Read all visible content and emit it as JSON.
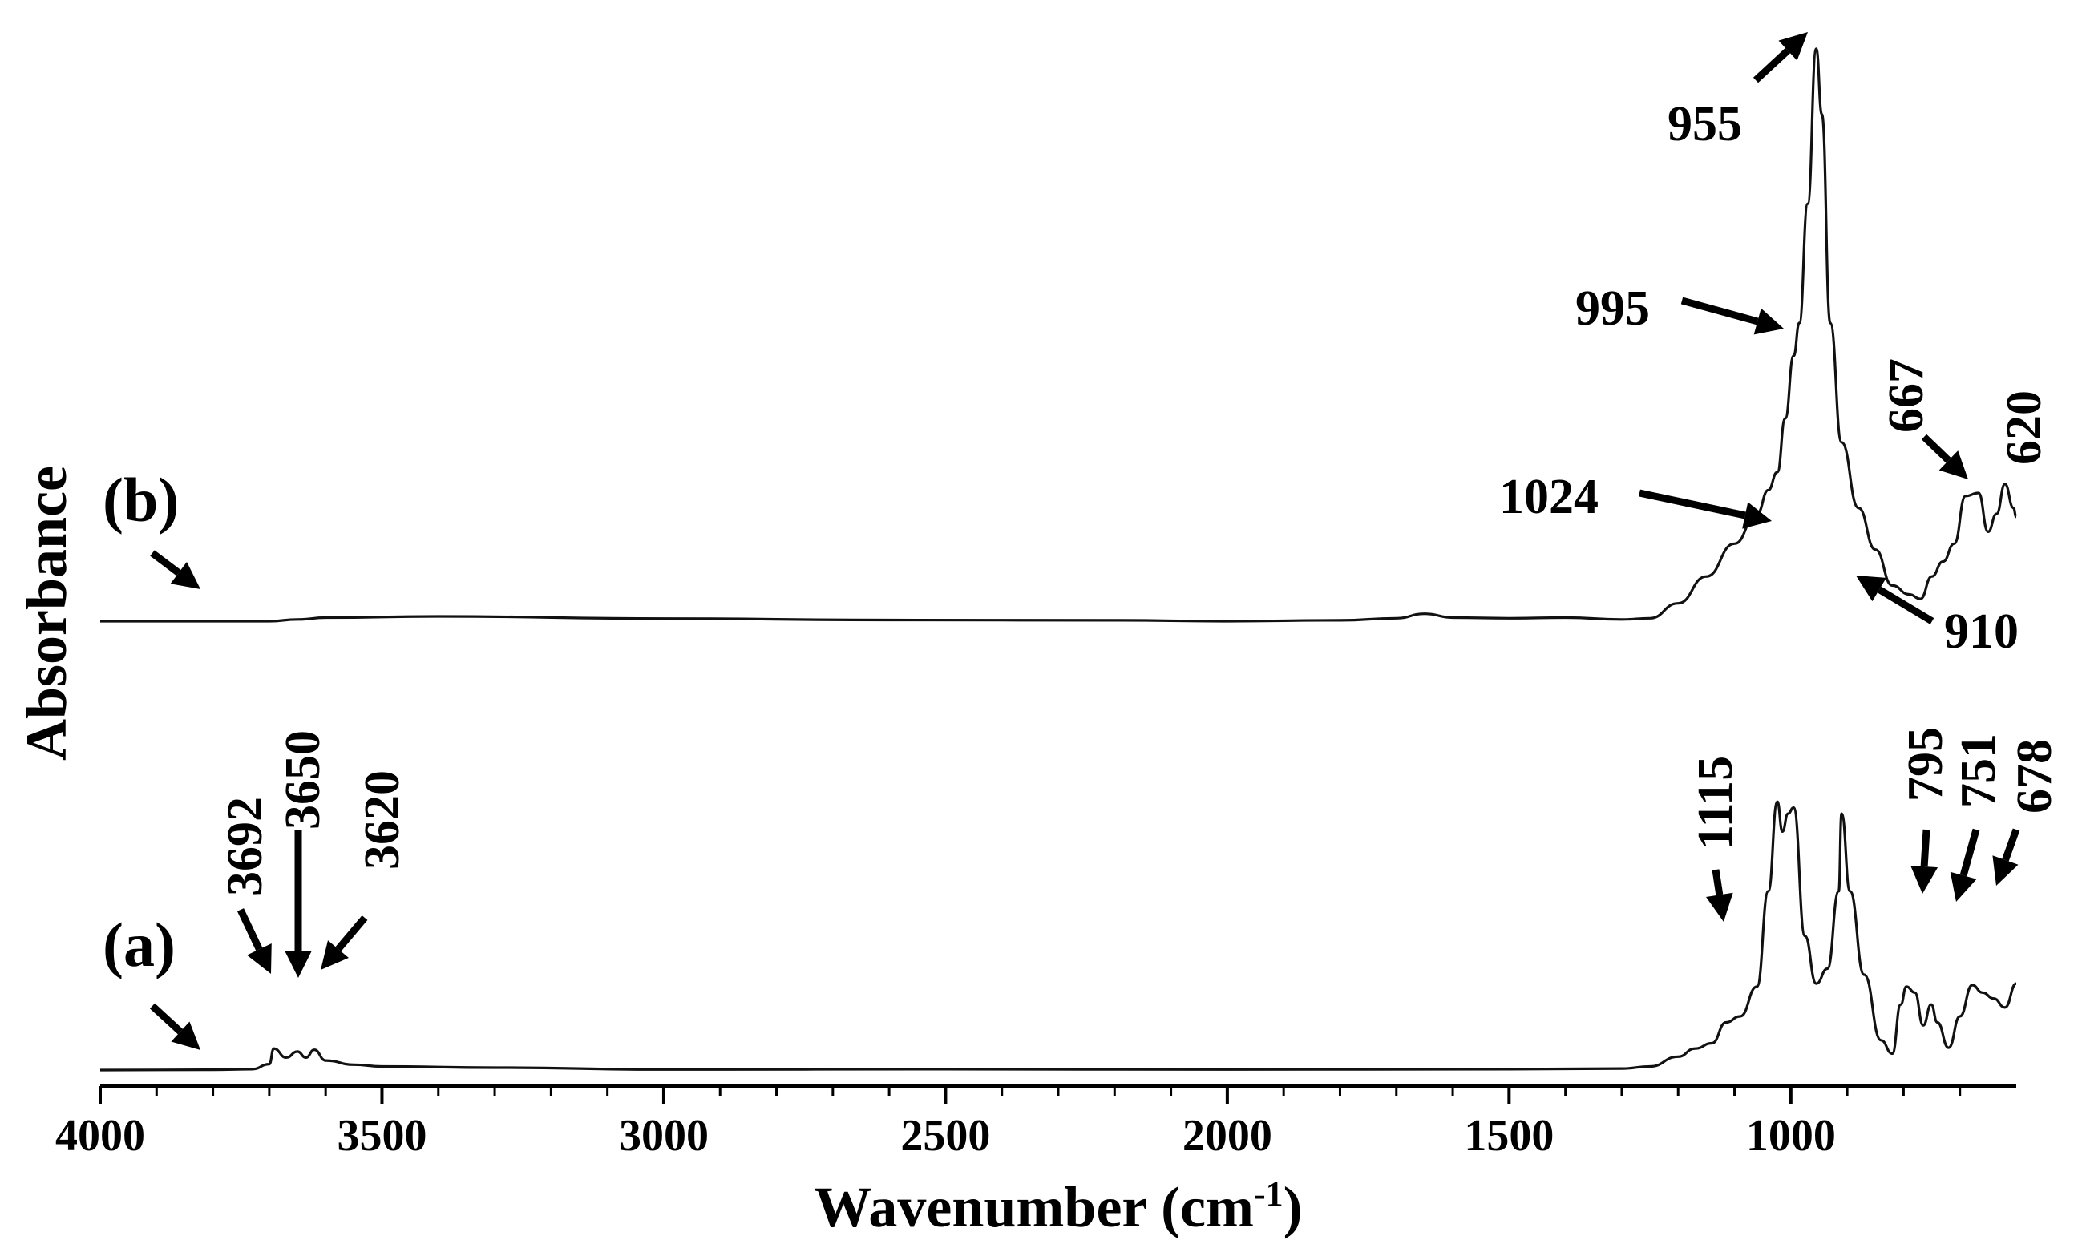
{
  "chart_data": {
    "type": "line",
    "title": "",
    "xlabel": "Wavenumber (cm",
    "xlabel_sup": "-1",
    "xlabel_close": ")",
    "ylabel": "Absorbance",
    "xlim": [
      4000,
      600
    ],
    "x_reversed": true,
    "y_ticks_shown": false,
    "grid": false,
    "xticks": [
      4000,
      3500,
      3000,
      2500,
      2000,
      1500,
      1000
    ],
    "series": [
      {
        "name": "(a)",
        "points": [
          [
            4000,
            0.0
          ],
          [
            3800,
            0.01
          ],
          [
            3730,
            0.03
          ],
          [
            3700,
            0.2
          ],
          [
            3692,
            0.72
          ],
          [
            3670,
            0.42
          ],
          [
            3650,
            0.62
          ],
          [
            3635,
            0.42
          ],
          [
            3620,
            0.68
          ],
          [
            3600,
            0.32
          ],
          [
            3550,
            0.18
          ],
          [
            3500,
            0.12
          ],
          [
            3300,
            0.08
          ],
          [
            3000,
            0.02
          ],
          [
            2500,
            0.03
          ],
          [
            2000,
            0.02
          ],
          [
            1500,
            0.03
          ],
          [
            1300,
            0.05
          ],
          [
            1250,
            0.12
          ],
          [
            1200,
            0.45
          ],
          [
            1170,
            0.72
          ],
          [
            1140,
            0.9
          ],
          [
            1115,
            1.6
          ],
          [
            1090,
            1.8
          ],
          [
            1060,
            2.8
          ],
          [
            1040,
            6.0
          ],
          [
            1024,
            9.0
          ],
          [
            1015,
            8.0
          ],
          [
            1005,
            8.6
          ],
          [
            995,
            8.8
          ],
          [
            975,
            4.5
          ],
          [
            955,
            2.9
          ],
          [
            935,
            3.4
          ],
          [
            915,
            6.0
          ],
          [
            910,
            8.6
          ],
          [
            895,
            6.0
          ],
          [
            870,
            3.2
          ],
          [
            840,
            1.0
          ],
          [
            820,
            0.55
          ],
          [
            805,
            2.2
          ],
          [
            795,
            2.8
          ],
          [
            780,
            2.6
          ],
          [
            765,
            1.5
          ],
          [
            751,
            2.2
          ],
          [
            740,
            1.6
          ],
          [
            720,
            0.75
          ],
          [
            700,
            1.8
          ],
          [
            678,
            2.85
          ],
          [
            660,
            2.6
          ],
          [
            640,
            2.4
          ],
          [
            620,
            2.1
          ],
          [
            600,
            2.9
          ]
        ]
      },
      {
        "name": "(b)",
        "points": [
          [
            4000,
            0.0
          ],
          [
            3700,
            0.0
          ],
          [
            3650,
            0.06
          ],
          [
            3600,
            0.12
          ],
          [
            3400,
            0.16
          ],
          [
            3000,
            0.09
          ],
          [
            2600,
            0.04
          ],
          [
            2200,
            0.03
          ],
          [
            2000,
            0.0
          ],
          [
            1800,
            0.03
          ],
          [
            1700,
            0.1
          ],
          [
            1650,
            0.25
          ],
          [
            1600,
            0.12
          ],
          [
            1500,
            0.1
          ],
          [
            1400,
            0.12
          ],
          [
            1300,
            0.06
          ],
          [
            1250,
            0.1
          ],
          [
            1200,
            0.6
          ],
          [
            1150,
            1.5
          ],
          [
            1100,
            2.6
          ],
          [
            1060,
            3.6
          ],
          [
            1040,
            4.4
          ],
          [
            1024,
            5.0
          ],
          [
            1010,
            6.8
          ],
          [
            995,
            8.9
          ],
          [
            985,
            10.0
          ],
          [
            970,
            14.0
          ],
          [
            955,
            19.2
          ],
          [
            945,
            17.0
          ],
          [
            930,
            10.0
          ],
          [
            910,
            6.0
          ],
          [
            880,
            3.8
          ],
          [
            850,
            2.4
          ],
          [
            820,
            1.2
          ],
          [
            790,
            0.9
          ],
          [
            770,
            0.75
          ],
          [
            750,
            1.5
          ],
          [
            730,
            2.0
          ],
          [
            710,
            2.6
          ],
          [
            690,
            4.2
          ],
          [
            667,
            4.3
          ],
          [
            650,
            3.0
          ],
          [
            635,
            3.6
          ],
          [
            620,
            4.6
          ],
          [
            605,
            3.8
          ],
          [
            600,
            3.5
          ]
        ]
      }
    ],
    "series_labels": [
      "(a)",
      "(b)"
    ],
    "peak_labels": [
      {
        "text": "3692",
        "series": "(a)"
      },
      {
        "text": "3650",
        "series": "(a)"
      },
      {
        "text": "3620",
        "series": "(a)"
      },
      {
        "text": "1115",
        "series": "(a)"
      },
      {
        "text": "795",
        "series": "(a)"
      },
      {
        "text": "751",
        "series": "(a)"
      },
      {
        "text": "678",
        "series": "(a)"
      },
      {
        "text": "1024",
        "series": "(b)"
      },
      {
        "text": "995",
        "series": "(b)"
      },
      {
        "text": "955",
        "series": "(b)"
      },
      {
        "text": "910",
        "series": "(b)"
      },
      {
        "text": "667",
        "series": "(b)"
      },
      {
        "text": "620",
        "series": "(b)"
      }
    ]
  }
}
